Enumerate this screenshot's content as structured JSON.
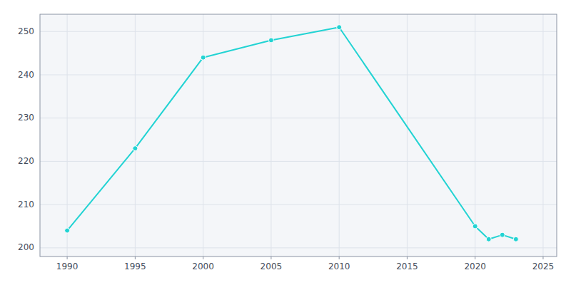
{
  "chart_data": {
    "type": "line",
    "x": [
      1990,
      1995,
      2000,
      2005,
      2010,
      2020,
      2021,
      2022,
      2023
    ],
    "values": [
      204,
      223,
      244,
      248,
      251,
      205,
      202,
      203,
      202
    ],
    "color": "#22d3d3",
    "marker": "circle",
    "xlim": [
      1988,
      2026
    ],
    "ylim": [
      198,
      254
    ],
    "xticks": [
      1990,
      1995,
      2000,
      2005,
      2010,
      2015,
      2020,
      2025
    ],
    "yticks": [
      200,
      210,
      220,
      230,
      240,
      250
    ],
    "grid": true
  }
}
